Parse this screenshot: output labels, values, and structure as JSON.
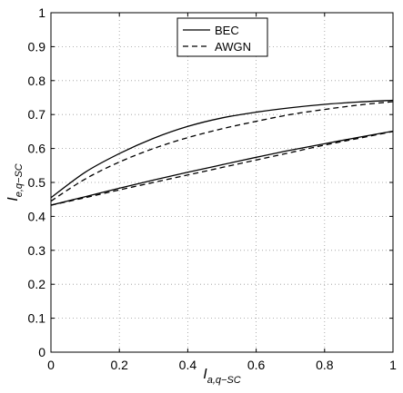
{
  "chart_data": {
    "type": "line",
    "title": "",
    "xlabel": {
      "base": "I",
      "sub": "a,q−SC"
    },
    "ylabel": {
      "base": "I",
      "sub": "e,q−SC"
    },
    "xlim": [
      0,
      1
    ],
    "ylim": [
      0,
      1
    ],
    "xticks": [
      0,
      0.2,
      0.4,
      0.6,
      0.8,
      1
    ],
    "xtick_labels": [
      "0",
      "0.2",
      "0.4",
      "0.6",
      "0.8",
      "1"
    ],
    "yticks": [
      0,
      0.1,
      0.2,
      0.3,
      0.4,
      0.5,
      0.6,
      0.7,
      0.8,
      0.9,
      1
    ],
    "ytick_labels": [
      "0",
      "0.1",
      "0.2",
      "0.3",
      "0.4",
      "0.5",
      "0.6",
      "0.7",
      "0.8",
      "0.9",
      "1"
    ],
    "grid": true,
    "legend_position": "top-center",
    "legend": [
      {
        "label": "BEC",
        "style": "solid"
      },
      {
        "label": "AWGN",
        "style": "dashed"
      }
    ],
    "series": [
      {
        "legend": "BEC",
        "style": "solid",
        "x": [
          0,
          0.1,
          0.2,
          0.3,
          0.4,
          0.5,
          0.6,
          0.7,
          0.8,
          0.9,
          1
        ],
        "y": [
          0.455,
          0.53,
          0.585,
          0.63,
          0.665,
          0.69,
          0.707,
          0.72,
          0.73,
          0.737,
          0.742
        ]
      },
      {
        "legend": "BEC",
        "style": "solid",
        "x": [
          0,
          0.1,
          0.2,
          0.3,
          0.4,
          0.5,
          0.6,
          0.7,
          0.8,
          0.9,
          1
        ],
        "y": [
          0.433,
          0.458,
          0.483,
          0.507,
          0.53,
          0.552,
          0.574,
          0.595,
          0.614,
          0.633,
          0.651
        ]
      },
      {
        "legend": "AWGN",
        "style": "dashed",
        "x": [
          0,
          0.1,
          0.2,
          0.3,
          0.4,
          0.5,
          0.6,
          0.7,
          0.8,
          0.9,
          1
        ],
        "y": [
          0.445,
          0.51,
          0.56,
          0.6,
          0.632,
          0.658,
          0.68,
          0.7,
          0.715,
          0.728,
          0.738
        ]
      },
      {
        "legend": "AWGN",
        "style": "dashed",
        "x": [
          0,
          0.1,
          0.2,
          0.3,
          0.4,
          0.5,
          0.6,
          0.7,
          0.8,
          0.9,
          1
        ],
        "y": [
          0.433,
          0.455,
          0.478,
          0.5,
          0.522,
          0.544,
          0.566,
          0.588,
          0.61,
          0.63,
          0.65
        ]
      }
    ]
  }
}
